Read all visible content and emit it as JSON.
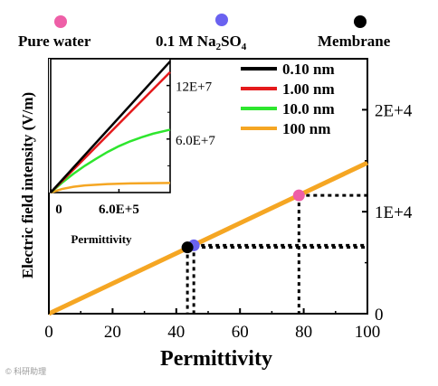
{
  "watermark": "© 科研助理",
  "top_legend": [
    {
      "label": "Pure water",
      "color": "#ee5fa7"
    },
    {
      "label_main": "0.1 M Na",
      "sub1": "2",
      "label_mid": "SO",
      "sub2": "4",
      "color": "#6a62f0"
    },
    {
      "label": "Membrane",
      "color": "#000000"
    }
  ],
  "chart_data": [
    {
      "type": "line",
      "title": "",
      "xlabel": "Permittivity",
      "ylabel": "Electric field intensity (V/m)",
      "xlim": [
        0,
        100
      ],
      "ylim": [
        0,
        25000
      ],
      "x_ticks": [
        0,
        20,
        40,
        60,
        80,
        100
      ],
      "y_ticks": [
        {
          "value": 0,
          "label": "0"
        },
        {
          "value": 10000,
          "label": "1E+4"
        },
        {
          "value": 20000,
          "label": "2E+4"
        }
      ],
      "series": [
        {
          "name": "100 nm",
          "color": "#f5a623",
          "x": [
            0,
            100
          ],
          "y": [
            0,
            14800
          ]
        }
      ],
      "markers": [
        {
          "x": 78.5,
          "y": 11600,
          "color": "#ee5fa7"
        },
        {
          "x": 45.5,
          "y": 6700,
          "color": "#6a62f0"
        },
        {
          "x": 43.5,
          "y": 6500,
          "color": "#000000"
        }
      ],
      "guides": [
        {
          "x": 78.5,
          "y": 11600
        },
        {
          "x": 45.5,
          "y": 6700
        },
        {
          "x": 43.5,
          "y": 6500
        }
      ]
    },
    {
      "type": "line",
      "role": "inset",
      "xlabel": "Permittivity",
      "xlim": [
        0,
        1050000
      ],
      "ylim": [
        0,
        150000000
      ],
      "x_ticks": [
        {
          "value": 0,
          "label": "0"
        },
        {
          "value": 600000,
          "label": "6.0E+5"
        }
      ],
      "y_ticks": [
        {
          "value": 60000000,
          "label": "6.0E+7"
        },
        {
          "value": 120000000,
          "label": "12E+7"
        }
      ],
      "legend_position": "right",
      "series": [
        {
          "name": "0.10 nm",
          "color": "#000000",
          "x": [
            0,
            1050000
          ],
          "y": [
            0,
            147000000
          ]
        },
        {
          "name": "1.00 nm",
          "color": "#e41a1c",
          "x": [
            0,
            1050000
          ],
          "y": [
            0,
            135000000
          ]
        },
        {
          "name": "10.0 nm",
          "color": "#2ee62e",
          "x": [
            0,
            100000,
            200000,
            300000,
            400000,
            500000,
            600000,
            700000,
            800000,
            900000,
            1000000,
            1050000
          ],
          "y": [
            0,
            11000000,
            21000000,
            30000000,
            38000000,
            45500000,
            52000000,
            57500000,
            62000000,
            66000000,
            69000000,
            70500000
          ]
        },
        {
          "name": "100 nm",
          "color": "#f5a623",
          "x": [
            0,
            100000,
            200000,
            300000,
            500000,
            700000,
            1050000
          ],
          "y": [
            0,
            4000000,
            6500000,
            8000000,
            9500000,
            10200000,
            10800000
          ]
        }
      ]
    }
  ]
}
